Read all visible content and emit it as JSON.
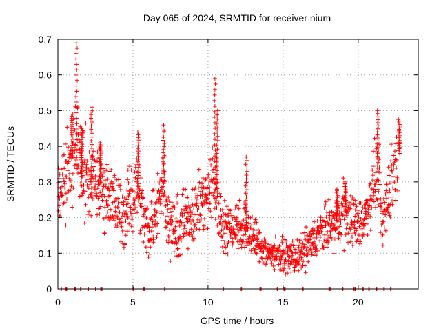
{
  "chart_data": {
    "type": "scatter",
    "title": "Day 065 of 2024, SRMTID for receiver nium",
    "xlabel": "GPS time / hours",
    "ylabel": "SRMTID / TECUs",
    "xlim": [
      0,
      24
    ],
    "ylim": [
      0,
      0.7
    ],
    "x_ticks": [
      0,
      5,
      10,
      15,
      20
    ],
    "x_tick_labels": [
      "0",
      "5",
      "10",
      "15",
      "20"
    ],
    "y_ticks": [
      0,
      0.1,
      0.2,
      0.3,
      0.4,
      0.5,
      0.6,
      0.7
    ],
    "y_tick_labels": [
      "0",
      "0.1",
      "0.2",
      "0.3",
      "0.4",
      "0.5",
      "0.6",
      "0.7"
    ],
    "grid": true,
    "marker": "plus",
    "series_color": "#ff0000",
    "envelope": {
      "x": [
        0.0,
        0.4,
        0.7,
        1.0,
        1.2,
        1.5,
        2.0,
        2.3,
        2.7,
        3.0,
        3.5,
        4.0,
        4.5,
        5.0,
        5.3,
        5.7,
        6.0,
        6.5,
        7.0,
        7.5,
        8.0,
        8.5,
        9.0,
        9.5,
        10.0,
        10.3,
        10.6,
        11.0,
        11.5,
        12.0,
        12.4,
        12.8,
        13.3,
        14.0,
        14.5,
        15.0,
        15.5,
        16.0,
        16.5,
        17.0,
        17.5,
        18.0,
        18.5,
        19.0,
        19.5,
        20.0,
        20.5,
        21.0,
        21.3,
        21.6,
        22.0,
        22.3,
        22.7
      ],
      "y": [
        0.28,
        0.3,
        0.34,
        0.38,
        0.4,
        0.33,
        0.3,
        0.3,
        0.3,
        0.28,
        0.26,
        0.22,
        0.21,
        0.26,
        0.3,
        0.2,
        0.16,
        0.22,
        0.3,
        0.17,
        0.16,
        0.2,
        0.22,
        0.24,
        0.26,
        0.3,
        0.26,
        0.17,
        0.18,
        0.18,
        0.17,
        0.16,
        0.13,
        0.1,
        0.1,
        0.09,
        0.09,
        0.09,
        0.11,
        0.13,
        0.16,
        0.17,
        0.18,
        0.22,
        0.2,
        0.18,
        0.2,
        0.3,
        0.33,
        0.18,
        0.27,
        0.31,
        0.38
      ],
      "spread": [
        0.05,
        0.06,
        0.08,
        0.1,
        0.1,
        0.08,
        0.08,
        0.07,
        0.07,
        0.07,
        0.07,
        0.07,
        0.06,
        0.07,
        0.07,
        0.06,
        0.06,
        0.07,
        0.07,
        0.06,
        0.06,
        0.06,
        0.06,
        0.06,
        0.07,
        0.07,
        0.07,
        0.05,
        0.05,
        0.05,
        0.05,
        0.05,
        0.04,
        0.03,
        0.03,
        0.03,
        0.03,
        0.03,
        0.04,
        0.04,
        0.04,
        0.05,
        0.05,
        0.06,
        0.05,
        0.05,
        0.05,
        0.06,
        0.07,
        0.06,
        0.07,
        0.07,
        0.07
      ]
    },
    "peaks": [
      {
        "x": 0.95,
        "y": 0.49
      },
      {
        "x": 1.25,
        "y": 0.69
      },
      {
        "x": 1.6,
        "y": 0.45
      },
      {
        "x": 2.25,
        "y": 0.51
      },
      {
        "x": 2.8,
        "y": 0.41
      },
      {
        "x": 5.35,
        "y": 0.44
      },
      {
        "x": 7.05,
        "y": 0.46
      },
      {
        "x": 10.45,
        "y": 0.59
      },
      {
        "x": 10.6,
        "y": 0.5
      },
      {
        "x": 12.55,
        "y": 0.37
      },
      {
        "x": 18.6,
        "y": 0.28
      },
      {
        "x": 19.15,
        "y": 0.3
      },
      {
        "x": 21.3,
        "y": 0.5
      },
      {
        "x": 22.75,
        "y": 0.47
      }
    ],
    "baseline_x": [
      0.2,
      0.5,
      0.55,
      1.1,
      1.15,
      1.5,
      2.0,
      2.5,
      2.85,
      2.9,
      5.0,
      5.7,
      5.75,
      7.1,
      11.0,
      12.2,
      13.45,
      13.5,
      14.6,
      15.05,
      15.1,
      16.3,
      18.05,
      18.1,
      18.95,
      19.7,
      19.8,
      20.3,
      20.7,
      21.2,
      21.7,
      22.15
    ]
  }
}
